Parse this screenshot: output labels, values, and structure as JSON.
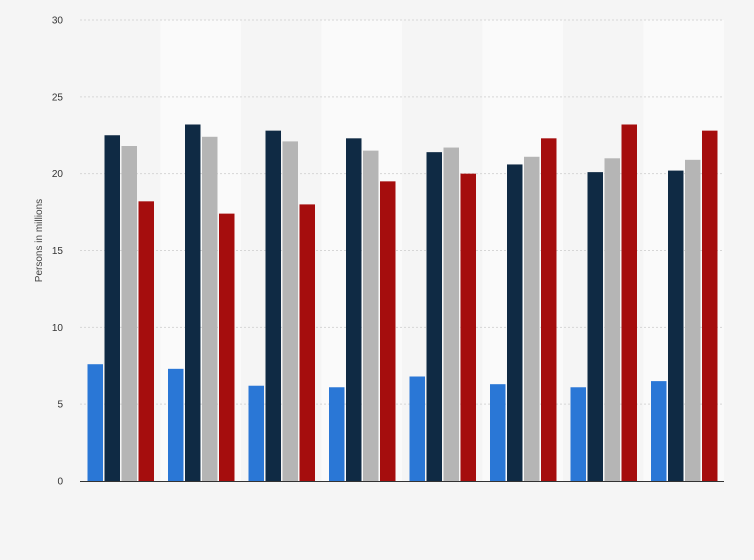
{
  "chart_data": {
    "type": "bar",
    "title": "",
    "xlabel": "",
    "ylabel": "Persons in millions",
    "ylim": [
      0,
      30
    ],
    "yticks": [
      0,
      5,
      10,
      15,
      20,
      25,
      30
    ],
    "grid": true,
    "legend": "none",
    "categories": [
      "",
      "",
      "",
      "",
      "",
      "",
      "",
      ""
    ],
    "series": [
      {
        "color": "#2a77d6",
        "values": [
          7.6,
          7.3,
          6.2,
          6.1,
          6.8,
          6.3,
          6.1,
          6.5
        ]
      },
      {
        "color": "#0f2a44",
        "values": [
          22.5,
          23.2,
          22.8,
          22.3,
          21.4,
          20.6,
          20.1,
          20.2
        ]
      },
      {
        "color": "#b5b5b5",
        "values": [
          21.8,
          22.4,
          22.1,
          21.5,
          21.7,
          21.1,
          21.0,
          20.9
        ]
      },
      {
        "color": "#a50d0d",
        "values": [
          18.2,
          17.4,
          18.0,
          19.5,
          20.0,
          22.3,
          23.2,
          22.8
        ]
      }
    ]
  }
}
